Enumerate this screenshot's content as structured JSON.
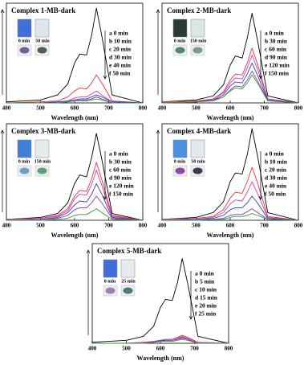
{
  "chart_data": [
    {
      "type": "line",
      "title": "Complex 1-MB-dark",
      "xlabel": "Wavelength (nm)",
      "xlim": [
        400,
        800
      ],
      "xticks": [
        400,
        500,
        600,
        700,
        800
      ],
      "ylim": [
        0,
        1
      ],
      "photo_labels": [
        "0 min",
        "50 min"
      ],
      "x": [
        400,
        500,
        550,
        580,
        600,
        615,
        635,
        650,
        664,
        680,
        710,
        800
      ],
      "series": [
        {
          "name": "a 0 min",
          "color": "#000000",
          "values": [
            0.01,
            0.03,
            0.08,
            0.19,
            0.4,
            0.49,
            0.48,
            0.68,
            0.95,
            0.67,
            0.08,
            0
          ]
        },
        {
          "name": "b 10 min",
          "color": "#e8323c",
          "values": [
            0,
            0.01,
            0.02,
            0.06,
            0.12,
            0.15,
            0.14,
            0.2,
            0.28,
            0.2,
            0.02,
            0
          ]
        },
        {
          "name": "c 20 min",
          "color": "#d83bb0",
          "values": [
            0,
            0,
            0.01,
            0.02,
            0.05,
            0.06,
            0.06,
            0.09,
            0.12,
            0.08,
            0.01,
            0
          ]
        },
        {
          "name": "d 30 min",
          "color": "#2f3fc8",
          "values": [
            0,
            0,
            0.01,
            0.02,
            0.03,
            0.04,
            0.04,
            0.06,
            0.08,
            0.06,
            0.01,
            0
          ]
        },
        {
          "name": "e 40 min",
          "color": "#7a3fa0",
          "values": [
            0,
            0,
            0,
            0.01,
            0.03,
            0.03,
            0.03,
            0.04,
            0.06,
            0.04,
            0,
            0
          ]
        },
        {
          "name": "f 50 min",
          "color": "#2e9a3a",
          "values": [
            0,
            0,
            0,
            0.01,
            0.02,
            0.02,
            0.02,
            0.03,
            0.04,
            0.03,
            0,
            0
          ]
        }
      ]
    },
    {
      "type": "line",
      "title": "Complex 2-MB-dark",
      "xlabel": "Wavelength (nm)",
      "xlim": [
        400,
        800
      ],
      "xticks": [
        400,
        500,
        600,
        700,
        800
      ],
      "ylim": [
        0,
        1
      ],
      "photo_labels": [
        "0 min",
        "150 min"
      ],
      "x": [
        400,
        500,
        550,
        580,
        600,
        615,
        635,
        650,
        664,
        680,
        710,
        800
      ],
      "series": [
        {
          "name": "a 0 min",
          "color": "#000000",
          "values": [
            0.01,
            0.03,
            0.07,
            0.18,
            0.38,
            0.47,
            0.45,
            0.65,
            0.9,
            0.63,
            0.07,
            0
          ]
        },
        {
          "name": "b 30 min",
          "color": "#e8323c",
          "values": [
            0.01,
            0.02,
            0.04,
            0.11,
            0.23,
            0.29,
            0.28,
            0.4,
            0.55,
            0.39,
            0.04,
            0
          ]
        },
        {
          "name": "c 60 min",
          "color": "#d83bb0",
          "values": [
            0,
            0.01,
            0.04,
            0.1,
            0.2,
            0.25,
            0.24,
            0.35,
            0.48,
            0.34,
            0.04,
            0
          ]
        },
        {
          "name": "d 90 min",
          "color": "#2f3fc8",
          "values": [
            0,
            0.01,
            0.03,
            0.08,
            0.17,
            0.21,
            0.2,
            0.29,
            0.4,
            0.28,
            0.03,
            0
          ]
        },
        {
          "name": "e 120 min",
          "color": "#7a3fa0",
          "values": [
            0,
            0.01,
            0.03,
            0.06,
            0.13,
            0.17,
            0.16,
            0.23,
            0.32,
            0.22,
            0.03,
            0
          ]
        },
        {
          "name": "f 150 min",
          "color": "#2e9a3a",
          "values": [
            0,
            0.01,
            0.02,
            0.06,
            0.12,
            0.15,
            0.14,
            0.2,
            0.28,
            0.2,
            0.02,
            0
          ]
        }
      ]
    },
    {
      "type": "line",
      "title": "Complex 3-MB-dark",
      "xlabel": "Wavelength (nm)",
      "xlim": [
        400,
        800
      ],
      "xticks": [
        400,
        500,
        600,
        700,
        800
      ],
      "ylim": [
        0,
        1
      ],
      "photo_labels": [
        "0 min",
        "150 min"
      ],
      "x": [
        400,
        500,
        550,
        580,
        600,
        615,
        635,
        650,
        664,
        680,
        710,
        800
      ],
      "series": [
        {
          "name": "a 0 min",
          "color": "#000000",
          "values": [
            0.01,
            0.03,
            0.07,
            0.18,
            0.38,
            0.47,
            0.45,
            0.65,
            0.9,
            0.63,
            0.07,
            0
          ]
        },
        {
          "name": "b 30 min",
          "color": "#e8323c",
          "values": [
            0.01,
            0.02,
            0.05,
            0.12,
            0.25,
            0.31,
            0.3,
            0.43,
            0.6,
            0.42,
            0.05,
            0
          ]
        },
        {
          "name": "c 60 min",
          "color": "#d83bb0",
          "values": [
            0.01,
            0.02,
            0.04,
            0.1,
            0.22,
            0.27,
            0.26,
            0.37,
            0.52,
            0.36,
            0.04,
            0
          ]
        },
        {
          "name": "d 90 min",
          "color": "#2f3fc8",
          "values": [
            0,
            0.01,
            0.03,
            0.08,
            0.16,
            0.2,
            0.19,
            0.27,
            0.38,
            0.27,
            0.03,
            0
          ]
        },
        {
          "name": "e 120 min",
          "color": "#7a3fa0",
          "values": [
            0,
            0.01,
            0.02,
            0.05,
            0.11,
            0.13,
            0.13,
            0.18,
            0.25,
            0.18,
            0.02,
            0
          ]
        },
        {
          "name": "f 150 min",
          "color": "#2e9a3a",
          "values": [
            0,
            0,
            0.01,
            0.02,
            0.05,
            0.06,
            0.06,
            0.09,
            0.12,
            0.08,
            0.01,
            0
          ]
        }
      ]
    },
    {
      "type": "line",
      "title": "Complex 4-MB-dark",
      "xlabel": "Wavelength (nm)",
      "xlim": [
        400,
        800
      ],
      "xticks": [
        400,
        500,
        600,
        700,
        800
      ],
      "ylim": [
        0,
        1
      ],
      "photo_labels": [
        "0 min",
        "50 min"
      ],
      "x": [
        400,
        500,
        550,
        580,
        600,
        615,
        635,
        650,
        664,
        680,
        710,
        800
      ],
      "series": [
        {
          "name": "a 0 min",
          "color": "#000000",
          "values": [
            0.01,
            0.03,
            0.08,
            0.19,
            0.4,
            0.49,
            0.48,
            0.68,
            0.95,
            0.67,
            0.08,
            0
          ]
        },
        {
          "name": "b 10 min",
          "color": "#e8323c",
          "values": [
            0.01,
            0.02,
            0.04,
            0.11,
            0.23,
            0.29,
            0.28,
            0.4,
            0.55,
            0.39,
            0.04,
            0
          ]
        },
        {
          "name": "c 20 min",
          "color": "#d83bb0",
          "values": [
            0,
            0.01,
            0.03,
            0.08,
            0.17,
            0.21,
            0.2,
            0.29,
            0.4,
            0.28,
            0.03,
            0
          ]
        },
        {
          "name": "d 30 min",
          "color": "#2f3fc8",
          "values": [
            0,
            0.01,
            0.02,
            0.05,
            0.11,
            0.13,
            0.13,
            0.18,
            0.25,
            0.18,
            0.02,
            0
          ]
        },
        {
          "name": "e 40 min",
          "color": "#7a3fa0",
          "values": [
            0,
            0,
            0.01,
            0.02,
            0.05,
            0.06,
            0.06,
            0.09,
            0.12,
            0.08,
            0.01,
            0
          ]
        },
        {
          "name": "f 50 min",
          "color": "#2e9a3a",
          "values": [
            0,
            0,
            0.01,
            0.01,
            0.03,
            0.04,
            0.04,
            0.05,
            0.07,
            0.05,
            0.01,
            0
          ]
        }
      ]
    },
    {
      "type": "line",
      "title": "Complex 5-MB-dark",
      "xlabel": "Wavelength (nm)",
      "xlim": [
        400,
        800
      ],
      "xticks": [
        400,
        500,
        600,
        700,
        800
      ],
      "ylim": [
        0,
        1
      ],
      "photo_labels": [
        "0 min",
        "25 min"
      ],
      "x": [
        400,
        500,
        550,
        580,
        600,
        615,
        635,
        650,
        664,
        680,
        710,
        800
      ],
      "series": [
        {
          "name": "a 0 min",
          "color": "#000000",
          "values": [
            0.01,
            0.03,
            0.07,
            0.17,
            0.36,
            0.44,
            0.43,
            0.61,
            0.85,
            0.6,
            0.07,
            0
          ]
        },
        {
          "name": "b 5 min",
          "color": "#e8323c",
          "values": [
            0,
            0,
            0.01,
            0.02,
            0.03,
            0.04,
            0.04,
            0.06,
            0.08,
            0.06,
            0.01,
            0
          ]
        },
        {
          "name": "c 10 min",
          "color": "#d83bb0",
          "values": [
            0,
            0,
            0.01,
            0.01,
            0.03,
            0.04,
            0.04,
            0.05,
            0.07,
            0.05,
            0.01,
            0
          ]
        },
        {
          "name": "d 15 min",
          "color": "#2f3fc8",
          "values": [
            0,
            0,
            0,
            0.01,
            0.03,
            0.03,
            0.03,
            0.04,
            0.06,
            0.04,
            0,
            0
          ]
        },
        {
          "name": "e 20 min",
          "color": "#7a3fa0",
          "values": [
            0,
            0,
            0,
            0.01,
            0.02,
            0.03,
            0.03,
            0.04,
            0.05,
            0.04,
            0,
            0
          ]
        },
        {
          "name": "f 25 min",
          "color": "#2e9a3a",
          "values": [
            0,
            0,
            0,
            0.01,
            0.02,
            0.02,
            0.02,
            0.03,
            0.04,
            0.03,
            0,
            0
          ]
        }
      ]
    }
  ]
}
